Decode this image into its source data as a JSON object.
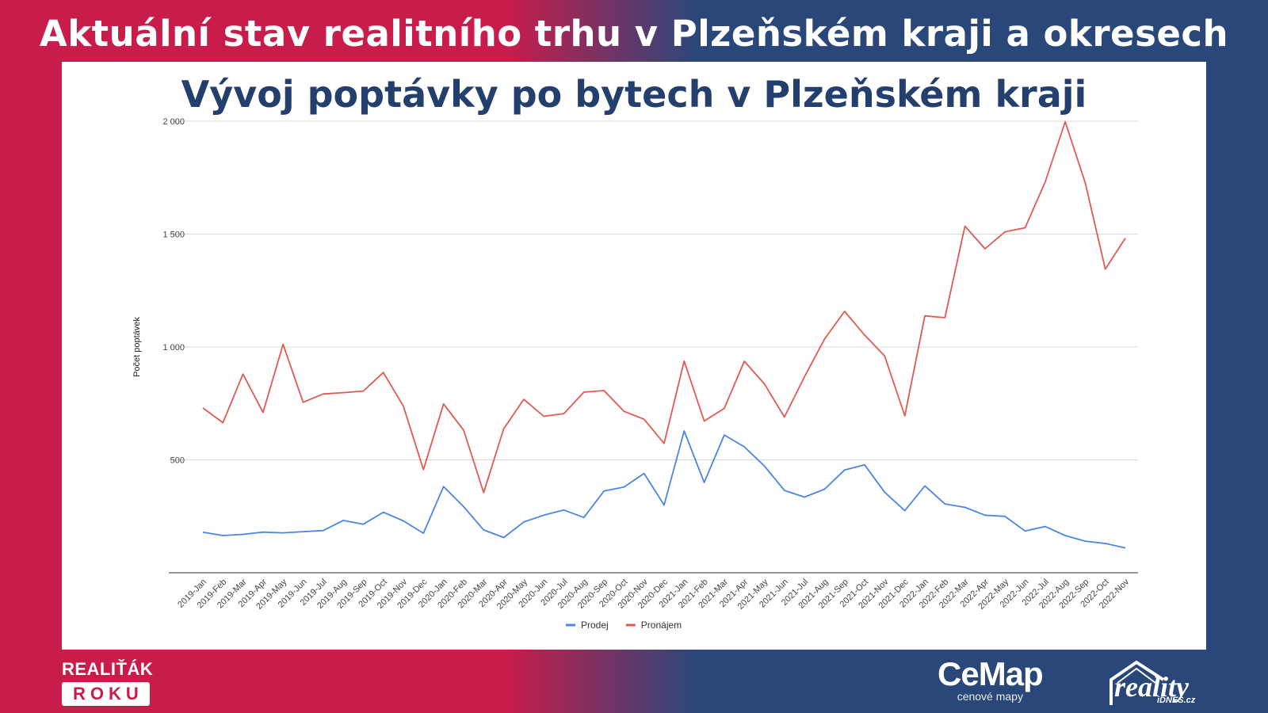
{
  "header": {
    "title": "Aktuální stav realitního trhu v Plzeňském kraji a okresech"
  },
  "brands": {
    "left_top": "REALIŤÁK",
    "left_box": "ROKU",
    "cemap_main": "CeMap",
    "cemap_sub": "cenové mapy",
    "reality_main": "reality",
    "reality_sub": "iDNES.cz"
  },
  "chart_data": {
    "type": "line",
    "title": "Vývoj poptávky po bytech v Plzeňském kraji",
    "xlabel": "",
    "ylabel": "Počet poptávek",
    "ylim": [
      0,
      2000
    ],
    "yticks": [
      500,
      1000,
      1500,
      2000
    ],
    "ytick_labels": [
      "500",
      "1 000",
      "1 500",
      "2 000"
    ],
    "grid": true,
    "legend_position": "bottom",
    "categories": [
      "2019-Jan",
      "2019-Feb",
      "2019-Mar",
      "2019-Apr",
      "2019-May",
      "2019-Jun",
      "2019-Jul",
      "2019-Aug",
      "2019-Sep",
      "2019-Oct",
      "2019-Nov",
      "2019-Dec",
      "2020-Jan",
      "2020-Feb",
      "2020-Mar",
      "2020-Apr",
      "2020-May",
      "2020-Jun",
      "2020-Jul",
      "2020-Aug",
      "2020-Sep",
      "2020-Oct",
      "2020-Nov",
      "2020-Dec",
      "2021-Jan",
      "2021-Feb",
      "2021-Mar",
      "2021-Apr",
      "2021-May",
      "2021-Jun",
      "2021-Jul",
      "2021-Aug",
      "2021-Sep",
      "2021-Oct",
      "2021-Nov",
      "2021-Dec",
      "2022-Jan",
      "2022-Feb",
      "2022-Mar",
      "2022-Apr",
      "2022-May",
      "2022-Jun",
      "2022-Jul",
      "2022-Aug",
      "2022-Sep",
      "2022-Oct",
      "2022-Nov"
    ],
    "series": [
      {
        "name": "Prodej",
        "color": "#4a86e8",
        "values": [
          180,
          165,
          170,
          180,
          177,
          182,
          187,
          232,
          215,
          268,
          230,
          175,
          382,
          293,
          190,
          156,
          225,
          255,
          278,
          245,
          362,
          380,
          440,
          300,
          628,
          400,
          610,
          558,
          473,
          365,
          335,
          370,
          455,
          478,
          357,
          275,
          385,
          305,
          290,
          255,
          250,
          185,
          205,
          165,
          140,
          130,
          110
        ]
      },
      {
        "name": "Pronájem",
        "color": "#e05a52",
        "values": [
          730,
          665,
          880,
          710,
          1012,
          755,
          792,
          798,
          805,
          887,
          738,
          457,
          748,
          632,
          355,
          638,
          768,
          693,
          705,
          800,
          807,
          715,
          680,
          573,
          938,
          672,
          728,
          937,
          837,
          690,
          868,
          1035,
          1158,
          1053,
          960,
          695,
          1138,
          1130,
          1535,
          1435,
          1510,
          1528,
          1730,
          1998,
          1727,
          1345,
          1482
        ]
      }
    ]
  }
}
